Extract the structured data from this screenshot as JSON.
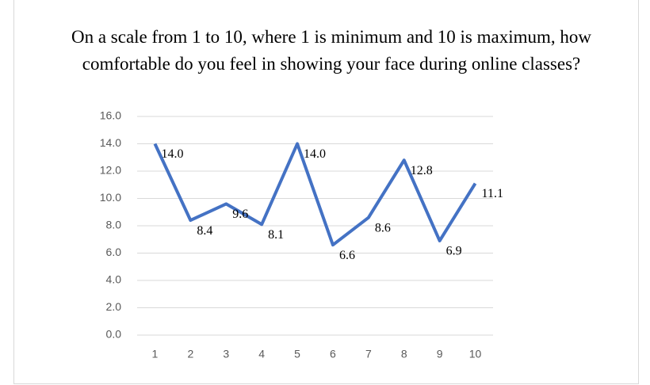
{
  "chart_data": {
    "type": "line",
    "title": "On a scale from 1 to 10, where 1 is minimum and 10 is maximum, how comfortable do you feel in showing your face during online classes?",
    "categories": [
      "1",
      "2",
      "3",
      "4",
      "5",
      "6",
      "7",
      "8",
      "9",
      "10"
    ],
    "values": [
      14.0,
      8.4,
      9.6,
      8.1,
      14.0,
      6.6,
      8.6,
      12.8,
      6.9,
      11.1
    ],
    "value_labels": [
      "14.0",
      "8.4",
      "9.6",
      "8.1",
      "14.0",
      "6.6",
      "8.6",
      "12.8",
      "6.9",
      "11.1"
    ],
    "color": "#4472c4",
    "ylim": [
      0,
      16
    ],
    "yticks": [
      {
        "value": 0,
        "label": "0.0"
      },
      {
        "value": 2,
        "label": "2.0"
      },
      {
        "value": 4,
        "label": "4.0"
      },
      {
        "value": 6,
        "label": "6.0"
      },
      {
        "value": 8,
        "label": "8.0"
      },
      {
        "value": 10,
        "label": "10.0"
      },
      {
        "value": 12,
        "label": "12.0"
      },
      {
        "value": 14,
        "label": "14.0"
      },
      {
        "value": 16,
        "label": "16.0"
      }
    ],
    "grid": true
  }
}
